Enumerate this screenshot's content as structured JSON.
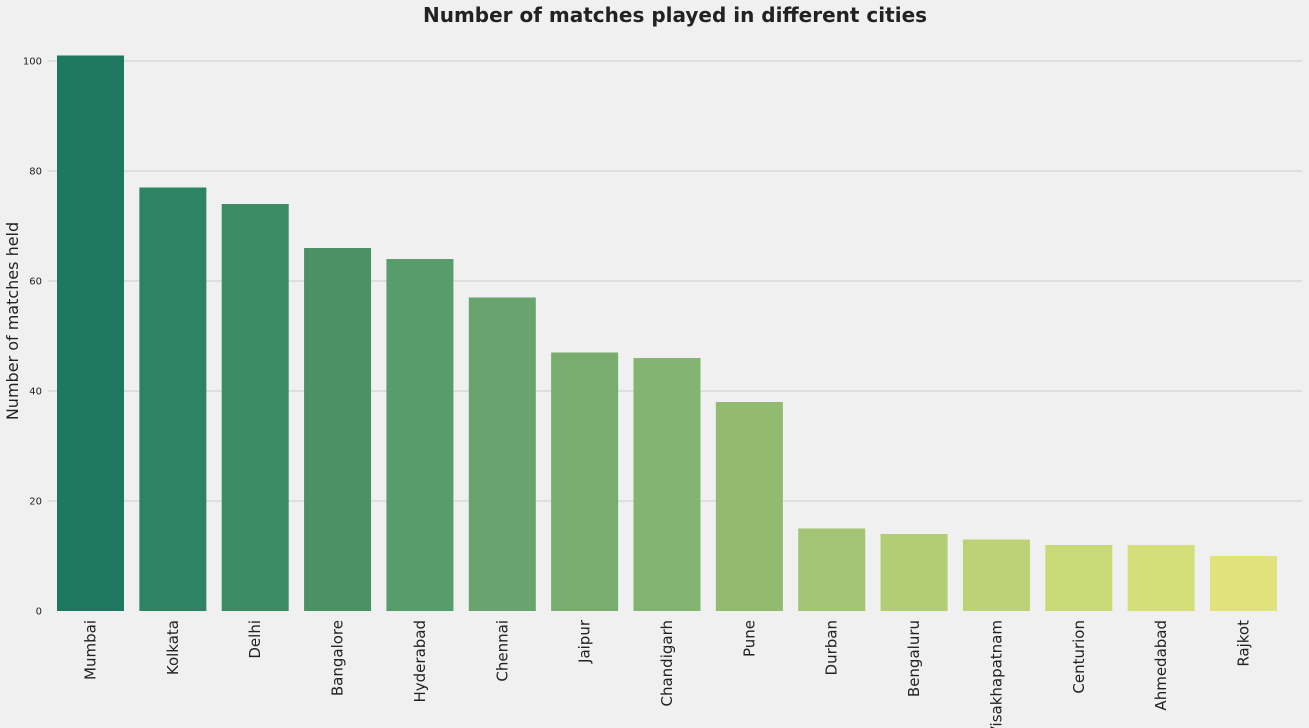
{
  "chart_data": {
    "type": "bar",
    "title": "Number of matches played in different cities",
    "xlabel": "",
    "ylabel": "Number of matches held",
    "categories": [
      "Mumbai",
      "Kolkata",
      "Delhi",
      "Bangalore",
      "Hyderabad",
      "Chennai",
      "Jaipur",
      "Chandigarh",
      "Pune",
      "Durban",
      "Bengaluru",
      "Visakhapatnam",
      "Centurion",
      "Ahmedabad",
      "Rajkot"
    ],
    "values": [
      101,
      77,
      74,
      66,
      64,
      57,
      47,
      46,
      38,
      15,
      14,
      13,
      12,
      12,
      10
    ],
    "ylim": [
      0,
      103
    ],
    "yticks": [
      0,
      20,
      40,
      60,
      80,
      100
    ],
    "grid": true,
    "colors": [
      "#1e775f",
      "#2d8463",
      "#3b8c65",
      "#4a9265",
      "#599c6c",
      "#69a36e",
      "#78ad6f",
      "#84b471",
      "#92bb70",
      "#a2c473",
      "#b2cd74",
      "#bdd276",
      "#c8d978",
      "#d4df79",
      "#e0e37b"
    ]
  }
}
